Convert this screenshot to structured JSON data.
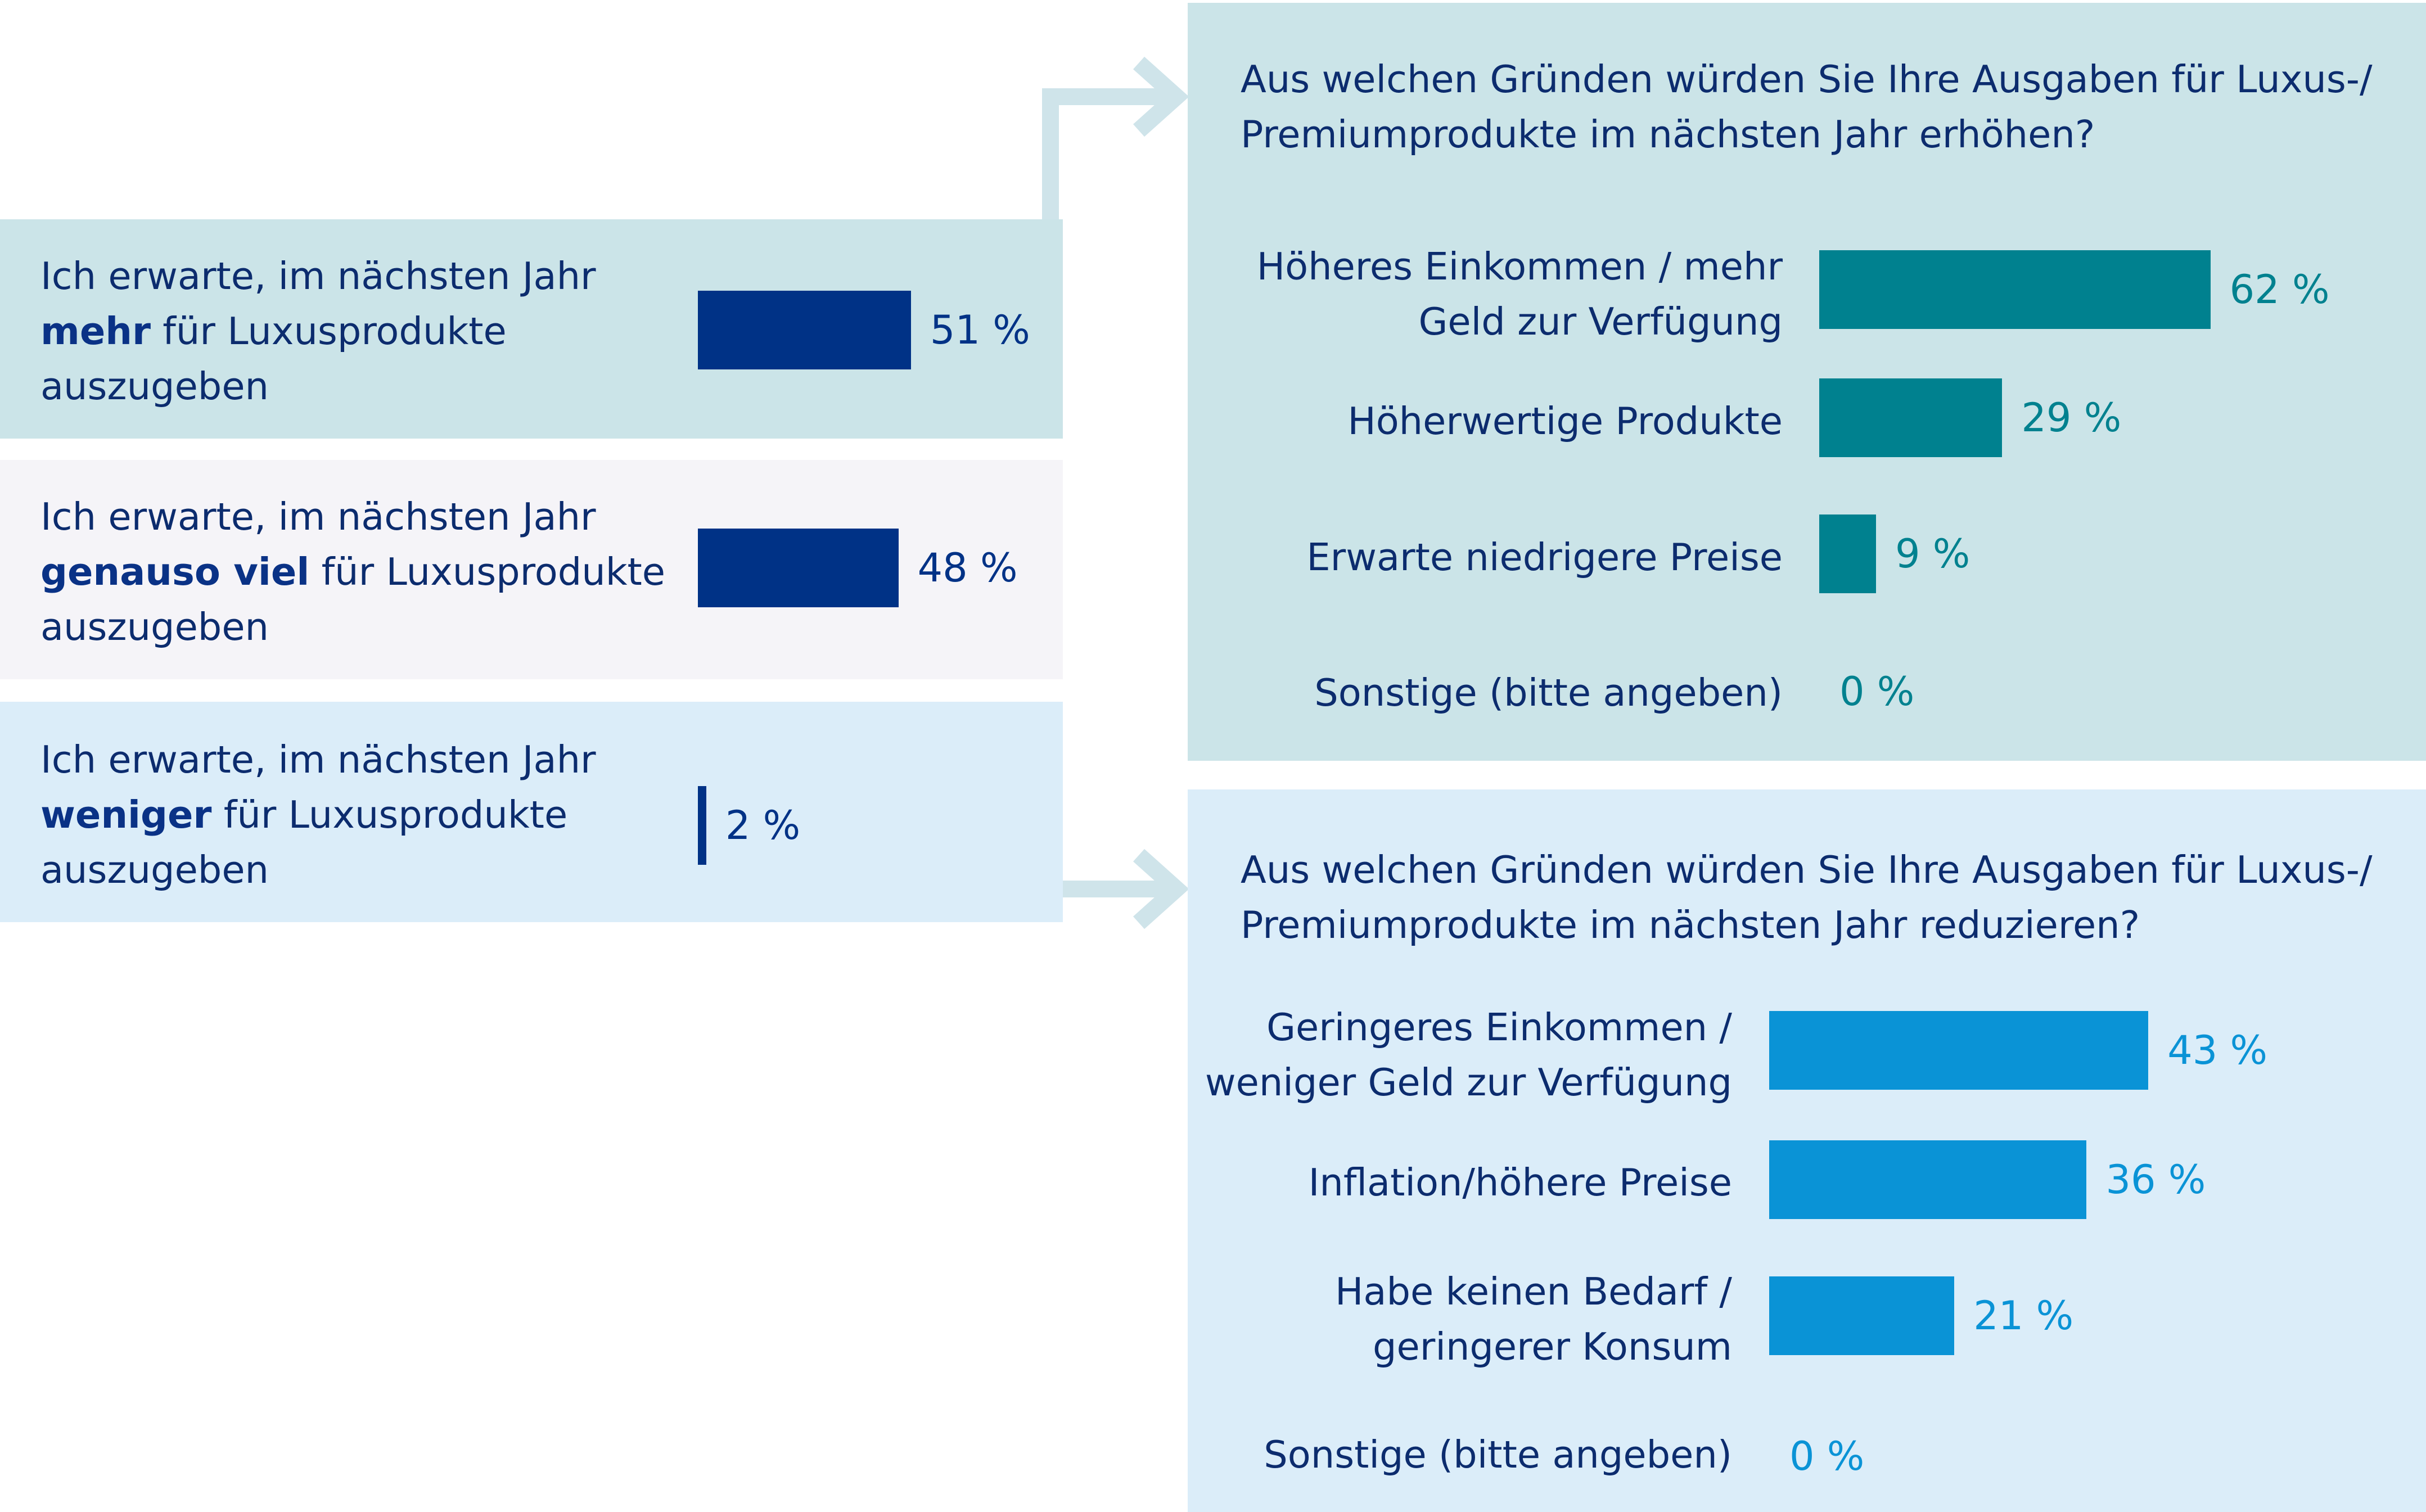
{
  "colors": {
    "left_bar": "#003286",
    "top_bar": "#00818f",
    "bottom_bar": "#0a93d6",
    "panel_more": "#cbe4e8",
    "panel_same": "#f5f4f8",
    "panel_less": "#dbedf9",
    "arrow": "#cfe4ea",
    "text": "#0c2c6e"
  },
  "left": {
    "rows": [
      {
        "pre": "Ich erwarte, im nächsten Jahr ",
        "bold": "mehr",
        "post": " für Luxusprodukte auszugeben",
        "value_label": "51 %"
      },
      {
        "pre": "Ich erwarte, im nächsten Jahr ",
        "bold": "genauso viel",
        "post": " für Luxusprodukte auszugeben",
        "value_label": "48 %"
      },
      {
        "pre": "Ich erwarte, im nächsten Jahr ",
        "bold": "weniger",
        "post": " für Luxusprodukte auszugeben",
        "value_label": "2 %"
      }
    ]
  },
  "top": {
    "question": "Aus welchen Gründen würden Sie Ihre Ausgaben für Luxus-/ Premiumprodukte im nächsten Jahr erhöhen?",
    "labels": [
      "Höheres Einkommen / mehr Geld zur Verfügung",
      "Höherwertige Produkte",
      "Erwarte niedrigere Preise",
      "Sonstige (bitte angeben)"
    ],
    "value_labels": [
      "62 %",
      "29 %",
      "9 %",
      "0 %"
    ]
  },
  "bottom": {
    "question": "Aus welchen Gründen würden Sie Ihre Ausgaben für Luxus-/ Premiumprodukte im nächsten Jahr reduzieren?",
    "labels": [
      "Geringeres Einkommen / weniger Geld zur Verfügung",
      "Inflation/höhere Preise",
      "Habe keinen Bedarf / geringerer Konsum",
      "Sonstige (bitte angeben)"
    ],
    "value_labels": [
      "43 %",
      "36 %",
      "21 %",
      "0 %"
    ]
  },
  "chart_data": [
    {
      "type": "bar",
      "orientation": "horizontal",
      "categories": [
        "Ich erwarte, im nächsten Jahr mehr für Luxusprodukte auszugeben",
        "Ich erwarte, im nächsten Jahr genauso viel für Luxusprodukte auszugeben",
        "Ich erwarte, im nächsten Jahr weniger für Luxusprodukte auszugeben"
      ],
      "values": [
        51,
        48,
        2
      ],
      "unit": "%"
    },
    {
      "type": "bar",
      "orientation": "horizontal",
      "title": "Aus welchen Gründen würden Sie Ihre Ausgaben für Luxus-/ Premiumprodukte im nächsten Jahr erhöhen?",
      "categories": [
        "Höheres Einkommen / mehr Geld zur Verfügung",
        "Höherwertige Produkte",
        "Erwarte niedrigere Preise",
        "Sonstige (bitte angeben)"
      ],
      "values": [
        62,
        29,
        9,
        0
      ],
      "unit": "%"
    },
    {
      "type": "bar",
      "orientation": "horizontal",
      "title": "Aus welchen Gründen würden Sie Ihre Ausgaben für Luxus-/ Premiumprodukte im nächsten Jahr reduzieren?",
      "categories": [
        "Geringeres Einkommen / weniger Geld zur Verfügung",
        "Inflation/höhere Preise",
        "Habe keinen Bedarf / geringerer Konsum",
        "Sonstige (bitte angeben)"
      ],
      "values": [
        43,
        36,
        21,
        0
      ],
      "unit": "%"
    }
  ]
}
